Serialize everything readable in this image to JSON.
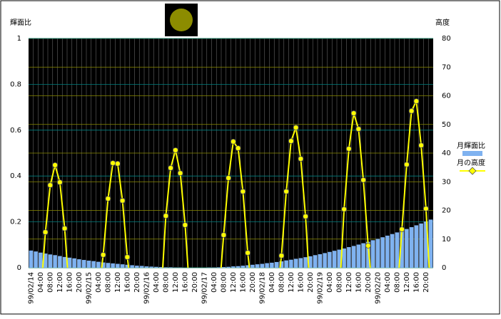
{
  "chart_data": {
    "type": "bar",
    "y_label": "輝面比",
    "y2_label": "高度",
    "categories": [
      "99/02/14",
      null,
      "04:00",
      null,
      "08:00",
      null,
      "12:00",
      null,
      "16:00",
      null,
      "20:00",
      null,
      "99/02/15",
      null,
      "04:00",
      null,
      "08:00",
      null,
      "12:00",
      null,
      "16:00",
      null,
      "20:00",
      null,
      "99/02/16",
      null,
      "04:00",
      null,
      "08:00",
      null,
      "12:00",
      null,
      "16:00",
      null,
      "20:00",
      null,
      "99/02/17",
      null,
      "04:00",
      null,
      "08:00",
      null,
      "12:00",
      null,
      "16:00",
      null,
      "20:00",
      null,
      "99/02/18",
      null,
      "04:00",
      null,
      "08:00",
      null,
      "12:00",
      null,
      "16:00",
      null,
      "20:00",
      null,
      "99/02/19",
      null,
      "04:00",
      null,
      "08:00",
      null,
      "12:00",
      null,
      "16:00",
      null,
      "20:00",
      null,
      "99/02/20",
      null,
      "04:00",
      null,
      "08:00",
      null,
      "12:00",
      null,
      "16:00",
      null,
      "20:00",
      null
    ],
    "series": [
      {
        "name": "月輝面比",
        "type": "bar",
        "color": "#7fb2f0",
        "values": [
          0.075,
          0.071,
          0.066,
          0.062,
          0.058,
          0.055,
          0.051,
          0.047,
          0.044,
          0.041,
          0.037,
          0.034,
          0.031,
          0.029,
          0.026,
          0.023,
          0.021,
          0.019,
          0.017,
          0.015,
          0.013,
          0.011,
          0.009,
          0.008,
          0.006,
          0.005,
          0.004,
          0.003,
          0.002,
          0.002,
          0.001,
          0.001,
          0,
          0,
          0,
          0,
          0,
          0.001,
          0.001,
          0.002,
          0.003,
          0.004,
          0.006,
          0.007,
          0.009,
          0.011,
          0.013,
          0.015,
          0.017,
          0.02,
          0.022,
          0.025,
          0.028,
          0.032,
          0.035,
          0.039,
          0.042,
          0.046,
          0.05,
          0.055,
          0.059,
          0.064,
          0.069,
          0.074,
          0.079,
          0.084,
          0.09,
          0.095,
          0.101,
          0.107,
          0.113,
          0.12,
          0.126,
          0.133,
          0.14,
          0.147,
          0.154,
          0.162,
          0.169,
          0.177,
          0.185,
          0.193,
          0.202,
          0.21
        ]
      },
      {
        "name": "月の高度",
        "type": "line",
        "axis": "y2",
        "color": "#ffff00",
        "values": [
          null,
          null,
          -10,
          12.4,
          28.8,
          35.8,
          29.8,
          13.7,
          -10,
          null,
          null,
          null,
          null,
          null,
          -10,
          4.5,
          24.1,
          36.5,
          36.3,
          23.4,
          3.7,
          -10,
          null,
          null,
          null,
          null,
          null,
          -10,
          18.1,
          34.8,
          41,
          33,
          14.9,
          -10,
          null,
          null,
          null,
          null,
          null,
          -10,
          11.4,
          31.3,
          44,
          41.7,
          26.6,
          5.2,
          -10,
          null,
          null,
          null,
          null,
          -10,
          4.2,
          26.6,
          44.2,
          48.9,
          38,
          17.9,
          -10,
          null,
          null,
          null,
          null,
          null,
          -10,
          20.4,
          41.5,
          53.9,
          48.4,
          30.6,
          7.7,
          -10,
          null,
          null,
          null,
          null,
          -10,
          13.4,
          36,
          54.7,
          58.1,
          42.7,
          20.6,
          -10
        ]
      }
    ],
    "ylim": [
      0,
      1
    ],
    "yticks": [
      0,
      0.2,
      0.4,
      0.6,
      0.8,
      1
    ],
    "y2lim": [
      0,
      80
    ],
    "y2ticks": [
      0,
      10,
      20,
      30,
      40,
      50,
      60,
      70,
      80
    ],
    "grid": true
  }
}
